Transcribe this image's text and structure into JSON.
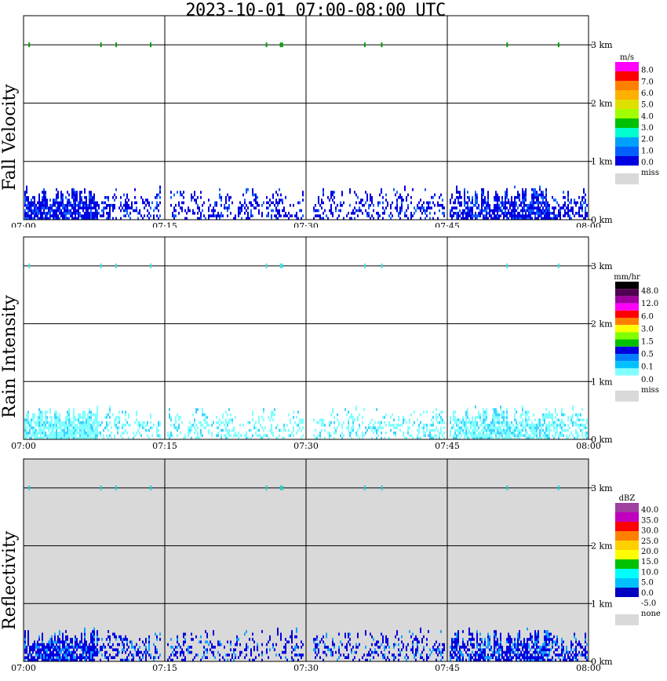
{
  "title": "2023-10-01   07:00-08:00 UTC",
  "chart_data": [
    {
      "type": "heatmap",
      "ylabel": "Fall Velocity",
      "x_ticks": [
        "07:00",
        "07:15",
        "07:30",
        "07:45",
        "08:00"
      ],
      "y_ticks": [
        "0 km",
        "1 km",
        "2 km",
        "3 km"
      ],
      "ylim": [
        0,
        3.5
      ],
      "legend_unit": "m/s",
      "legend_labels": [
        "8.0",
        "7.0",
        "6.0",
        "5.0",
        "4.0",
        "3.0",
        "2.0",
        "1.0",
        "0.0"
      ],
      "legend_colors": [
        "#ff00ff",
        "#ff0000",
        "#ff8000",
        "#ffb000",
        "#e0e000",
        "#a0ff00",
        "#00c000",
        "#00ffd0",
        "#00a0ff",
        "#0060ff",
        "#0000e0"
      ],
      "miss_label": "miss",
      "miss_color": "#d9d9d9",
      "background": "#ffffff",
      "data_color": "#0000e0",
      "accent_color": "#1060ff",
      "top_marker_color": "#00a000",
      "fill_top_km": 0.55
    },
    {
      "type": "heatmap",
      "ylabel": "Rain Intensity",
      "x_ticks": [
        "07:00",
        "07:15",
        "07:30",
        "07:45",
        "08:00"
      ],
      "y_ticks": [
        "0 km",
        "1 km",
        "2 km",
        "3 km"
      ],
      "ylim": [
        0,
        3.5
      ],
      "legend_unit": "mm/hr",
      "legend_labels": [
        "48.0",
        "12.0",
        "6.0",
        "3.0",
        "1.5",
        "0.5",
        "0.1",
        "0.0"
      ],
      "legend_colors": [
        "#000000",
        "#500050",
        "#a000a0",
        "#ff00ff",
        "#ff0000",
        "#ff8000",
        "#ffff00",
        "#80ff00",
        "#00c000",
        "#0000e0",
        "#0080ff",
        "#00c0ff",
        "#80ffff",
        "#ffffff"
      ],
      "miss_label": "miss",
      "miss_color": "#d9d9d9",
      "background": "#ffffff",
      "data_color": "#80ffff",
      "accent_color": "#40d0ff",
      "top_marker_color": "#40e0e0",
      "fill_top_km": 0.55
    },
    {
      "type": "heatmap",
      "ylabel": "Reflectivity",
      "x_ticks": [
        "07:00",
        "07:15",
        "07:30",
        "07:45",
        "08:00"
      ],
      "y_ticks": [
        "0 km",
        "1 km",
        "2 km",
        "3 km"
      ],
      "ylim": [
        0,
        3.5
      ],
      "legend_unit": "dBZ",
      "legend_labels": [
        "40.0",
        "35.0",
        "30.0",
        "25.0",
        "20.0",
        "15.0",
        "10.0",
        "5.0",
        "0.0",
        "-5.0"
      ],
      "legend_colors": [
        "#a040a0",
        "#c000c0",
        "#ff0000",
        "#ff8000",
        "#ffd000",
        "#ffff00",
        "#00c000",
        "#00ffff",
        "#00c0ff",
        "#0000c0",
        "#ffffff"
      ],
      "miss_label": "none",
      "miss_color": "#d9d9d9",
      "background": "#d9d9d9",
      "data_color": "#0000e0",
      "accent_color": "#10a0ff",
      "top_marker_color": "#20d0d0",
      "fill_top_km": 0.55
    }
  ]
}
